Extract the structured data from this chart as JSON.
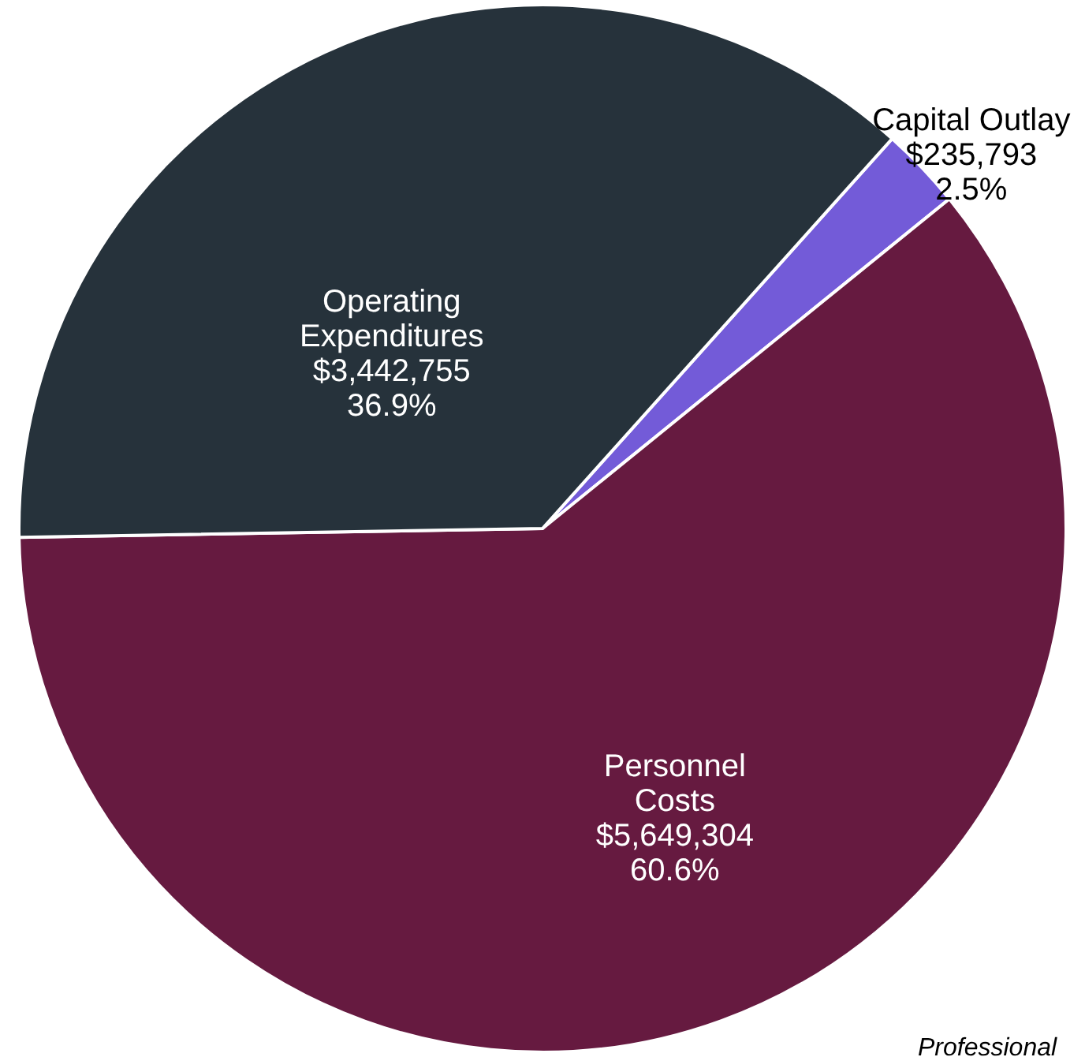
{
  "chart_data": {
    "type": "pie",
    "categories": [
      "Capital Outlay",
      "Personnel\nCosts",
      "Operating\nExpenditures"
    ],
    "values": [
      235793,
      5649304,
      3442755
    ],
    "colors": [
      "#735bd8",
      "#661a40",
      "#26323b"
    ],
    "value_labels": [
      "$235,793\n2.5%",
      "$5,649,304\n60.6%",
      "$3,442,755\n36.9%"
    ],
    "annotations": [
      "Professional"
    ]
  }
}
